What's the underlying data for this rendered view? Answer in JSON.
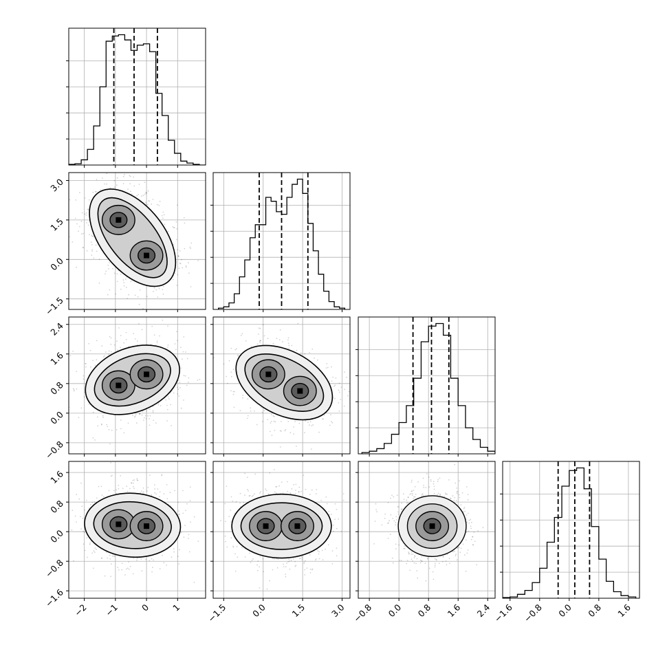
{
  "chart_data": {
    "type": "corner",
    "dimensions": 4,
    "ranges": [
      [
        -2.5,
        1.9
      ],
      [
        -1.9,
        3.3
      ],
      [
        -1.1,
        2.6
      ],
      [
        -1.8,
        1.9
      ]
    ],
    "ticks": [
      [
        -2,
        -1,
        0,
        1
      ],
      [
        -1.5,
        0.0,
        1.5,
        3.0
      ],
      [
        -0.8,
        0.0,
        0.8,
        1.6,
        2.4
      ],
      [
        -1.6,
        -0.8,
        0.0,
        0.8,
        1.6
      ]
    ],
    "tick_labels": [
      [
        "−2",
        "−1",
        "0",
        "1"
      ],
      [
        "−1.5",
        "0.0",
        "1.5",
        "3.0"
      ],
      [
        "−0.8",
        "0.0",
        "0.8",
        "1.6",
        "2.4"
      ],
      [
        "−1.6",
        "−0.8",
        "0.0",
        "0.8",
        "1.6"
      ]
    ],
    "quantiles_16_50_84": [
      [
        -1.05,
        -0.4,
        0.35
      ],
      [
        -0.15,
        0.7,
        1.7
      ],
      [
        0.38,
        0.88,
        1.35
      ],
      [
        -0.3,
        0.15,
        0.55
      ]
    ],
    "histograms": [
      {
        "bin_centers": [
          -2.4,
          -2.2,
          -2.0,
          -1.8,
          -1.6,
          -1.4,
          -1.2,
          -1.0,
          -0.8,
          -0.6,
          -0.4,
          -0.2,
          0.0,
          0.2,
          0.4,
          0.6,
          0.8,
          1.0,
          1.2,
          1.4,
          1.6,
          1.8
        ],
        "counts": [
          0.005,
          0.01,
          0.04,
          0.12,
          0.3,
          0.6,
          0.95,
          0.99,
          1.0,
          0.96,
          0.88,
          0.92,
          0.93,
          0.87,
          0.55,
          0.38,
          0.19,
          0.09,
          0.03,
          0.015,
          0.005,
          0.0
        ]
      },
      {
        "bin_centers": [
          -1.6,
          -1.4,
          -1.2,
          -1.0,
          -0.8,
          -0.6,
          -0.4,
          -0.2,
          0.0,
          0.2,
          0.4,
          0.6,
          0.8,
          1.0,
          1.2,
          1.4,
          1.6,
          1.8,
          2.0,
          2.2,
          2.4,
          2.6,
          2.8,
          3.0
        ],
        "counts": [
          0.01,
          0.02,
          0.05,
          0.12,
          0.25,
          0.38,
          0.55,
          0.65,
          0.65,
          0.86,
          0.83,
          0.75,
          0.73,
          0.86,
          0.96,
          1.0,
          0.89,
          0.66,
          0.45,
          0.27,
          0.14,
          0.06,
          0.02,
          0.01
        ]
      },
      {
        "bin_centers": [
          -0.9,
          -0.7,
          -0.5,
          -0.3,
          -0.1,
          0.1,
          0.3,
          0.5,
          0.7,
          0.9,
          1.1,
          1.3,
          1.5,
          1.7,
          1.9,
          2.1,
          2.3,
          2.5
        ],
        "counts": [
          0.01,
          0.02,
          0.04,
          0.08,
          0.15,
          0.24,
          0.37,
          0.58,
          0.86,
          0.98,
          1.0,
          0.91,
          0.58,
          0.37,
          0.2,
          0.11,
          0.05,
          0.02
        ]
      },
      {
        "bin_centers": [
          -1.7,
          -1.5,
          -1.3,
          -1.1,
          -0.9,
          -0.7,
          -0.5,
          -0.3,
          -0.1,
          0.1,
          0.3,
          0.5,
          0.7,
          0.9,
          1.1,
          1.3,
          1.5,
          1.7
        ],
        "counts": [
          0.005,
          0.01,
          0.03,
          0.06,
          0.12,
          0.23,
          0.43,
          0.62,
          0.86,
          0.98,
          1.0,
          0.84,
          0.55,
          0.3,
          0.13,
          0.05,
          0.02,
          0.01
        ]
      }
    ],
    "modes_2d": [
      {
        "x": 0,
        "y": 1,
        "peaks": [
          [
            -0.9,
            1.5
          ],
          [
            0.0,
            0.15
          ]
        ]
      },
      {
        "x": 0,
        "y": 2,
        "peaks": [
          [
            -0.9,
            0.75
          ],
          [
            0.0,
            1.05
          ]
        ]
      },
      {
        "x": 1,
        "y": 2,
        "peaks": [
          [
            0.2,
            1.05
          ],
          [
            1.4,
            0.6
          ]
        ]
      },
      {
        "x": 0,
        "y": 3,
        "peaks": [
          [
            -0.9,
            0.2
          ],
          [
            0.0,
            0.15
          ]
        ]
      },
      {
        "x": 1,
        "y": 3,
        "peaks": [
          [
            0.1,
            0.15
          ],
          [
            1.3,
            0.15
          ]
        ]
      },
      {
        "x": 2,
        "y": 3,
        "peaks": [
          [
            0.9,
            0.15
          ]
        ]
      }
    ],
    "grid": true
  }
}
